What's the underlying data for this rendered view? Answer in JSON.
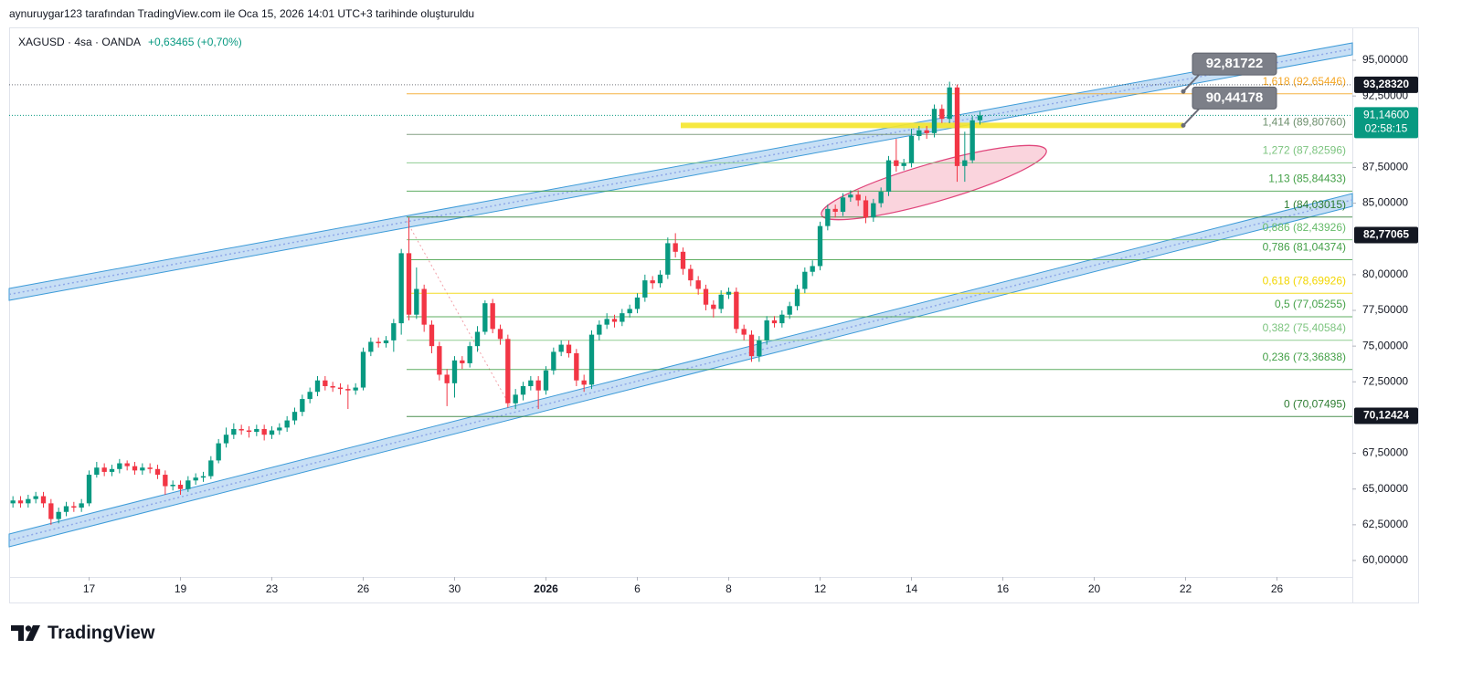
{
  "chart_data": {
    "type": "candlestick",
    "attribution": "aynuruygar123 tarafından TradingView.com ile Oca 15, 2026 14:01 UTC+3 tarihinde oluşturuldu",
    "title": "XAGUSD · 4sa · OANDA",
    "subtitle": "+0,63465 (+0,70%)",
    "up_color": "#089981",
    "down_color": "#f23645",
    "open": [
      64.0,
      64.2,
      64.0,
      64.3,
      64.5,
      64.0,
      62.9,
      63.4,
      63.8,
      63.7,
      64.0,
      66.0,
      66.5,
      66.2,
      66.4,
      66.8,
      66.6,
      66.3,
      66.5,
      66.4,
      66.0,
      65.2,
      65.3,
      65.0,
      65.6,
      65.8,
      65.9,
      67.0,
      68.2,
      68.8,
      69.2,
      69.1,
      69.0,
      69.2,
      68.8,
      69.1,
      69.3,
      69.8,
      70.4,
      71.3,
      71.8,
      72.6,
      72.2,
      72.1,
      72.0,
      71.9,
      72.1,
      74.6,
      75.3,
      75.2,
      75.4,
      76.6,
      81.5,
      77.2,
      79.0,
      76.5,
      75.0,
      73.0,
      72.4,
      74.0,
      73.8,
      75.0,
      76.0,
      78.0,
      76.2,
      75.5,
      71.0,
      71.6,
      72.2,
      72.6,
      71.9,
      73.3,
      74.6,
      75.1,
      74.5,
      72.6,
      72.3,
      75.8,
      76.5,
      76.9,
      76.7,
      77.3,
      77.6,
      78.4,
      79.6,
      79.4,
      80.0,
      82.2,
      81.6,
      80.4,
      79.6,
      79.0,
      77.9,
      77.6,
      78.6,
      78.8,
      76.2,
      75.8,
      74.3,
      75.4,
      76.8,
      76.6,
      77.2,
      77.8,
      79.0,
      80.2,
      80.6,
      83.4,
      84.6,
      84.4,
      85.4,
      85.6,
      85.2,
      84.0,
      85.0,
      85.8,
      88.0,
      87.6,
      87.8,
      89.7,
      90.1,
      89.9,
      91.6,
      90.9,
      93.1,
      87.6,
      88.0,
      90.8
    ],
    "high": [
      64.5,
      64.5,
      64.6,
      64.8,
      64.8,
      64.3,
      63.7,
      64.1,
      64.1,
      64.3,
      66.3,
      66.9,
      66.8,
      66.7,
      67.1,
      67.0,
      66.9,
      66.8,
      66.8,
      66.7,
      66.3,
      65.6,
      65.6,
      65.9,
      66.1,
      66.2,
      67.3,
      68.5,
      69.3,
      69.6,
      69.5,
      69.4,
      69.5,
      69.5,
      69.4,
      69.6,
      70.1,
      70.7,
      71.6,
      72.1,
      72.9,
      72.9,
      72.5,
      72.4,
      72.3,
      72.4,
      74.9,
      75.6,
      75.6,
      75.7,
      76.9,
      81.8,
      84.0,
      80.5,
      79.3,
      76.8,
      75.3,
      73.4,
      74.3,
      74.3,
      75.3,
      76.4,
      78.2,
      78.3,
      76.5,
      75.8,
      72.0,
      72.5,
      72.9,
      72.9,
      73.6,
      74.9,
      75.4,
      75.4,
      74.8,
      73.0,
      76.1,
      76.8,
      77.3,
      77.2,
      77.6,
      77.9,
      78.7,
      80.0,
      79.9,
      80.3,
      82.6,
      82.9,
      81.9,
      80.7,
      79.9,
      79.3,
      78.2,
      78.9,
      79.1,
      79.1,
      76.5,
      76.1,
      75.7,
      77.1,
      77.1,
      77.5,
      78.1,
      79.3,
      80.5,
      81.0,
      83.7,
      84.9,
      84.9,
      85.7,
      85.9,
      85.9,
      85.5,
      85.3,
      86.1,
      88.3,
      89.5,
      88.1,
      90.2,
      90.4,
      90.4,
      91.9,
      91.9,
      93.5,
      93.3,
      90.0,
      91.1,
      91.4
    ],
    "low": [
      63.7,
      63.7,
      63.7,
      64.0,
      63.7,
      62.5,
      62.6,
      63.1,
      63.4,
      63.4,
      63.8,
      65.8,
      65.9,
      65.9,
      66.1,
      66.3,
      66.0,
      66.0,
      66.1,
      65.7,
      64.6,
      64.9,
      64.6,
      64.8,
      65.3,
      65.5,
      65.7,
      66.8,
      67.9,
      68.5,
      68.8,
      68.6,
      68.7,
      68.4,
      68.5,
      68.8,
      69.0,
      69.5,
      70.1,
      71.0,
      71.5,
      71.9,
      71.8,
      71.6,
      70.6,
      71.6,
      71.9,
      74.3,
      74.9,
      74.9,
      74.6,
      75.8,
      76.8,
      76.9,
      76.0,
      74.5,
      72.6,
      70.8,
      71.4,
      73.4,
      73.5,
      74.6,
      75.8,
      75.9,
      75.1,
      70.7,
      70.6,
      71.2,
      71.9,
      70.6,
      71.6,
      73.0,
      74.3,
      74.2,
      72.2,
      71.8,
      72.0,
      75.4,
      76.2,
      76.3,
      76.4,
      77.0,
      77.3,
      78.1,
      79.0,
      79.1,
      79.7,
      81.2,
      80.0,
      79.2,
      78.6,
      77.5,
      77.0,
      77.3,
      78.3,
      75.9,
      75.4,
      73.9,
      73.9,
      75.1,
      76.3,
      76.3,
      76.9,
      77.5,
      78.7,
      79.9,
      80.3,
      83.1,
      84.0,
      84.1,
      85.1,
      84.8,
      83.6,
      83.7,
      84.7,
      85.5,
      87.2,
      87.3,
      87.5,
      89.4,
      89.5,
      89.6,
      90.6,
      90.6,
      86.5,
      86.5,
      87.8,
      90.5
    ],
    "close": [
      64.2,
      64.0,
      64.3,
      64.5,
      64.0,
      62.9,
      63.4,
      63.8,
      63.7,
      64.0,
      66.0,
      66.5,
      66.2,
      66.4,
      66.8,
      66.6,
      66.3,
      66.5,
      66.4,
      66.0,
      65.2,
      65.3,
      65.0,
      65.6,
      65.8,
      65.9,
      67.0,
      68.2,
      68.8,
      69.2,
      69.1,
      69.0,
      69.2,
      68.8,
      69.1,
      69.3,
      69.8,
      70.4,
      71.3,
      71.8,
      72.6,
      72.2,
      72.1,
      72.0,
      71.9,
      72.1,
      74.6,
      75.3,
      75.2,
      75.4,
      76.6,
      81.5,
      77.2,
      79.0,
      76.5,
      75.0,
      73.0,
      72.4,
      74.0,
      73.8,
      75.0,
      76.0,
      78.0,
      76.2,
      75.5,
      71.0,
      71.6,
      72.2,
      72.6,
      71.9,
      73.3,
      74.6,
      75.1,
      74.5,
      72.6,
      72.3,
      75.8,
      76.5,
      76.9,
      76.7,
      77.3,
      77.6,
      78.4,
      79.6,
      79.4,
      80.0,
      82.2,
      81.6,
      80.4,
      79.6,
      79.0,
      77.9,
      77.6,
      78.6,
      78.8,
      76.2,
      75.8,
      74.3,
      75.4,
      76.8,
      76.6,
      77.2,
      77.8,
      79.0,
      80.2,
      80.6,
      83.4,
      84.6,
      84.4,
      85.4,
      85.6,
      85.2,
      84.0,
      85.0,
      85.8,
      88.0,
      87.6,
      87.8,
      89.7,
      90.1,
      89.9,
      91.6,
      90.9,
      93.1,
      87.6,
      88.0,
      90.8,
      91.146
    ],
    "xlim": [
      -0.5,
      175.9
    ],
    "xticks": [
      {
        "value": 10,
        "label": "17"
      },
      {
        "value": 22,
        "label": "19"
      },
      {
        "value": 34,
        "label": "23"
      },
      {
        "value": 46,
        "label": "26"
      },
      {
        "value": 58,
        "label": "30"
      },
      {
        "value": 70,
        "label": "2026",
        "bold": true
      },
      {
        "value": 82,
        "label": "6"
      },
      {
        "value": 94,
        "label": "8"
      },
      {
        "value": 106,
        "label": "12"
      },
      {
        "value": 118,
        "label": "14"
      },
      {
        "value": 130,
        "label": "16"
      },
      {
        "value": 142,
        "label": "20"
      },
      {
        "value": 154,
        "label": "22"
      },
      {
        "value": 166,
        "label": "26"
      }
    ],
    "ylim": [
      58.85,
      97.3
    ],
    "yticks": [
      {
        "value": 95,
        "label": "95,00000"
      },
      {
        "value": 92.5,
        "label": "92,50000"
      },
      {
        "value": 87.5,
        "label": "87,50000"
      },
      {
        "value": 85,
        "label": "85,00000"
      },
      {
        "value": 80,
        "label": "80,00000"
      },
      {
        "value": 77.5,
        "label": "77,50000"
      },
      {
        "value": 75,
        "label": "75,00000"
      },
      {
        "value": 72.5,
        "label": "72,50000"
      },
      {
        "value": 67.5,
        "label": "67,50000"
      },
      {
        "value": 65,
        "label": "65,00000"
      },
      {
        "value": 62.5,
        "label": "62,50000"
      },
      {
        "value": 60,
        "label": "60,00000"
      }
    ],
    "fib_levels": [
      {
        "value": 92.65446,
        "label": "1,618 (92,65446)",
        "color": "#f5a623"
      },
      {
        "value": 89.8076,
        "label": "1,414 (89,80760)",
        "color": "#6d8f6d"
      },
      {
        "value": 87.82596,
        "label": "1,272 (87,82596)",
        "color": "#7cc47f"
      },
      {
        "value": 85.84433,
        "label": "1,13 (85,84433)",
        "color": "#43a047"
      },
      {
        "value": 84.03015,
        "label": "1 (84,03015)",
        "color": "#2e7d32"
      },
      {
        "value": 82.43926,
        "label": "0,886 (82,43926)",
        "color": "#66bb6a"
      },
      {
        "value": 81.04374,
        "label": "0,786 (81,04374)",
        "color": "#43a047"
      },
      {
        "value": 78.69926,
        "label": "0,618 (78,69926)",
        "color": "#f2d600"
      },
      {
        "value": 77.05255,
        "label": "0,5 (77,05255)",
        "color": "#43a047"
      },
      {
        "value": 75.40584,
        "label": "0,382 (75,40584)",
        "color": "#7cc47f"
      },
      {
        "value": 73.36838,
        "label": "0,236 (73,36838)",
        "color": "#43a047"
      },
      {
        "value": 70.07495,
        "label": "0 (70,07495)",
        "color": "#2e7d32"
      }
    ],
    "price_tags": [
      {
        "value": 93.2832,
        "label": "93,28320",
        "color": "#131722"
      },
      {
        "value": 82.77065,
        "label": "82,77065",
        "color": "#131722"
      },
      {
        "value": 70.12424,
        "label": "70,12424",
        "color": "#131722"
      }
    ],
    "last_price": {
      "value": 91.146,
      "label": "91,14600",
      "countdown": "02:58:15",
      "color": "#089981"
    },
    "callouts": [
      {
        "value": 92.81722,
        "label": "92,81722"
      },
      {
        "value": 90.44178,
        "label": "90,44178"
      }
    ],
    "brand": "TradingView"
  }
}
